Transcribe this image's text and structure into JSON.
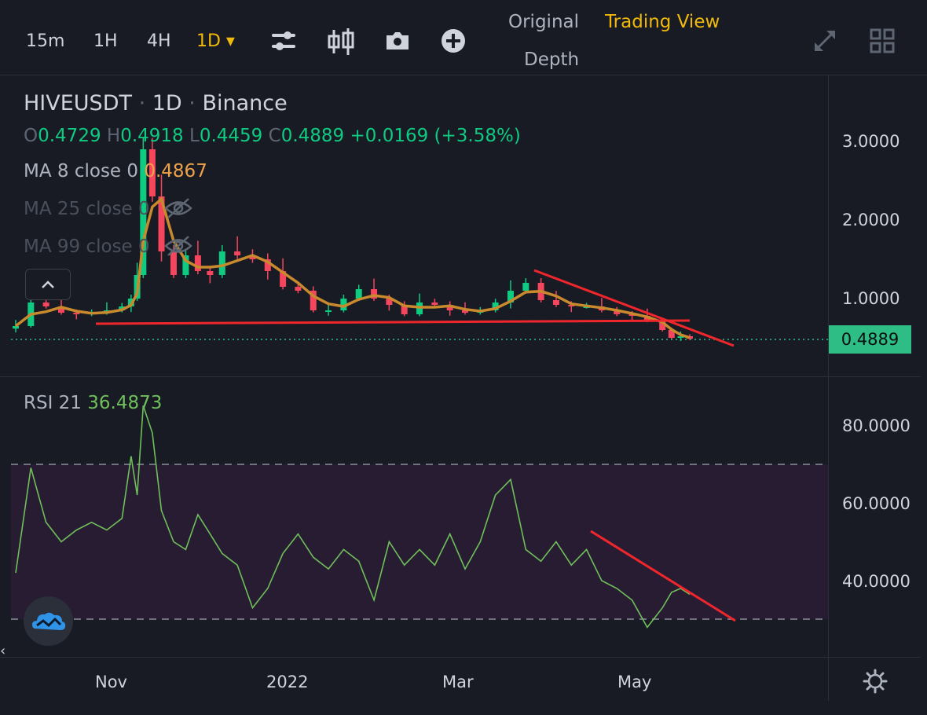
{
  "toolbar": {
    "intervals": [
      "15m",
      "1H",
      "4H",
      "1D ▾"
    ],
    "active_interval_index": 3,
    "icons": [
      "sliders-icon",
      "candles-icon",
      "camera-icon",
      "plus-circle-icon"
    ],
    "views": {
      "original": "Original",
      "trading_view": "Trading View",
      "depth": "Depth"
    },
    "active_view": "trading_view",
    "right_icons": [
      "expand-icon",
      "grid-layout-icon"
    ]
  },
  "legend": {
    "symbol": "HIVEUSDT",
    "sep1": " · ",
    "interval": "1D",
    "sep2": " · ",
    "exchange": "Binance",
    "ohlc": {
      "o_label": "O",
      "o": "0.4729",
      "h_label": "H",
      "h": "0.4918",
      "l_label": "L",
      "l": "0.4459",
      "c_label": "C",
      "c": "0.4889",
      "change": "+0.0169 (+3.58%)"
    },
    "ma8": {
      "label": "MA 8 close 0",
      "value": "0.4867"
    },
    "ma25": {
      "label": "MA 25 close 0"
    },
    "ma99": {
      "label": "MA 99 close 0"
    },
    "hidden_icon": "eye-off-icon",
    "collapse_icon": "chevron-up-icon"
  },
  "rsi_legend": {
    "label": "RSI 21",
    "value": "36.4873"
  },
  "price_axis": [
    "3.0000",
    "2.0000",
    "1.0000"
  ],
  "last_price": "0.4889",
  "rsi_axis": [
    "80.0000",
    "60.0000",
    "40.0000"
  ],
  "time_axis": [
    "Nov",
    "2022",
    "Mar",
    "May"
  ],
  "colors": {
    "background": "#181b23",
    "up": "#0ecb81",
    "down": "#f6465d",
    "ma8": "#c98a2e",
    "rsi": "#6fbf5a",
    "trendline": "#f0262d",
    "accent": "#f0b90b"
  },
  "chart_data": [
    {
      "type": "candlestick",
      "title": "HIVEUSDT · 1D · Binance",
      "x": [
        "2021-10-07",
        "2021-10-12",
        "2021-10-17",
        "2021-10-22",
        "2021-10-27",
        "2021-11-01",
        "2021-11-06",
        "2021-11-11",
        "2021-11-14",
        "2021-11-16",
        "2021-11-18",
        "2021-11-21",
        "2021-11-24",
        "2021-11-28",
        "2021-12-02",
        "2021-12-06",
        "2021-12-10",
        "2021-12-14",
        "2021-12-19",
        "2021-12-24",
        "2021-12-29",
        "2022-01-03",
        "2022-01-08",
        "2022-01-13",
        "2022-01-18",
        "2022-01-23",
        "2022-01-28",
        "2022-02-02",
        "2022-02-07",
        "2022-02-12",
        "2022-02-17",
        "2022-02-22",
        "2022-02-27",
        "2022-03-04",
        "2022-03-09",
        "2022-03-14",
        "2022-03-19",
        "2022-03-24",
        "2022-03-29",
        "2022-04-03",
        "2022-04-08",
        "2022-04-13",
        "2022-04-18",
        "2022-04-23",
        "2022-04-28",
        "2022-05-03",
        "2022-05-08",
        "2022-05-11",
        "2022-05-14",
        "2022-05-17"
      ],
      "close": [
        0.65,
        0.95,
        0.9,
        0.82,
        0.8,
        0.82,
        0.85,
        0.9,
        1.0,
        1.3,
        2.9,
        2.3,
        1.6,
        1.3,
        1.55,
        1.35,
        1.3,
        1.6,
        1.55,
        1.5,
        1.35,
        1.15,
        1.1,
        0.85,
        0.85,
        1.0,
        1.12,
        1.0,
        0.92,
        0.8,
        0.95,
        0.92,
        0.85,
        0.82,
        0.85,
        0.95,
        1.1,
        1.2,
        0.98,
        0.92,
        0.9,
        0.9,
        0.85,
        0.8,
        0.78,
        0.72,
        0.6,
        0.5,
        0.52,
        0.4889
      ],
      "last": {
        "open": 0.4729,
        "high": 0.4918,
        "low": 0.4459,
        "close": 0.4889,
        "change": 0.0169,
        "change_pct": 3.58
      },
      "ma8_last": 0.4867,
      "ylim": [
        0.4,
        3.5
      ],
      "ticks": [
        1.0,
        2.0,
        3.0
      ]
    },
    {
      "type": "line",
      "title": "RSI 21",
      "x": [
        "2021-10-07",
        "2021-10-12",
        "2021-10-17",
        "2021-10-22",
        "2021-10-27",
        "2021-11-01",
        "2021-11-06",
        "2021-11-11",
        "2021-11-14",
        "2021-11-16",
        "2021-11-18",
        "2021-11-21",
        "2021-11-24",
        "2021-11-28",
        "2021-12-02",
        "2021-12-06",
        "2021-12-10",
        "2021-12-14",
        "2021-12-19",
        "2021-12-24",
        "2021-12-29",
        "2022-01-03",
        "2022-01-08",
        "2022-01-13",
        "2022-01-18",
        "2022-01-23",
        "2022-01-28",
        "2022-02-02",
        "2022-02-07",
        "2022-02-12",
        "2022-02-17",
        "2022-02-22",
        "2022-02-27",
        "2022-03-04",
        "2022-03-09",
        "2022-03-14",
        "2022-03-19",
        "2022-03-24",
        "2022-03-29",
        "2022-04-03",
        "2022-04-08",
        "2022-04-13",
        "2022-04-18",
        "2022-04-23",
        "2022-04-28",
        "2022-05-03",
        "2022-05-08",
        "2022-05-11",
        "2022-05-14",
        "2022-05-17"
      ],
      "values": [
        42,
        69,
        55,
        50,
        53,
        55,
        53,
        56,
        72,
        62,
        85,
        78,
        58,
        50,
        48,
        57,
        52,
        47,
        44,
        33,
        38,
        47,
        52,
        46,
        43,
        48,
        45,
        35,
        50,
        44,
        48,
        44,
        52,
        43,
        50,
        62,
        66,
        48,
        45,
        50,
        44,
        48,
        40,
        38,
        35,
        28,
        33,
        37,
        38,
        36.4873
      ],
      "ylim": [
        20,
        95
      ],
      "ticks": [
        40,
        60,
        80
      ],
      "bands": [
        70,
        30
      ]
    }
  ]
}
